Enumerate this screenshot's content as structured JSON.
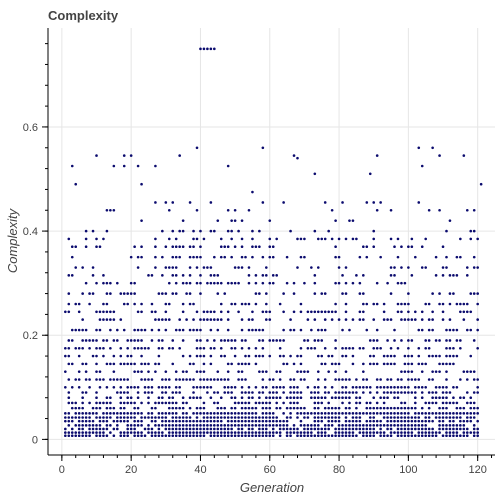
{
  "chart_data": {
    "type": "scatter",
    "title": "Complexity",
    "xlabel": "Generation",
    "ylabel": "Complexity",
    "xlim": [
      -4,
      125
    ],
    "ylim": [
      -0.03,
      0.79
    ],
    "x_ticks": [
      0,
      20,
      40,
      60,
      80,
      100,
      120
    ],
    "y_ticks": [
      0,
      0.2,
      0.4,
      0.6
    ],
    "grid": true,
    "marker_color": "#0b0b6e",
    "generations": [
      1,
      120
    ],
    "levels": [
      0.007,
      0.013,
      0.02,
      0.027,
      0.035,
      0.042,
      0.05,
      0.06,
      0.07,
      0.08,
      0.09,
      0.1,
      0.115,
      0.13,
      0.145,
      0.16,
      0.175,
      0.19,
      0.21,
      0.23,
      0.245,
      0.26,
      0.28,
      0.3,
      0.315,
      0.33,
      0.35,
      0.37,
      0.385,
      0.4,
      0.42,
      0.44,
      0.455,
      0.475,
      0.49,
      0.51,
      0.525,
      0.545,
      0.56
    ],
    "outliers": [
      {
        "x": 40,
        "y": 0.75
      },
      {
        "x": 41,
        "y": 0.75
      },
      {
        "x": 42,
        "y": 0.75
      },
      {
        "x": 43,
        "y": 0.75
      },
      {
        "x": 44,
        "y": 0.75
      },
      {
        "x": 39,
        "y": 0.56
      },
      {
        "x": 34,
        "y": 0.545
      },
      {
        "x": 67,
        "y": 0.545
      },
      {
        "x": 68,
        "y": 0.54
      },
      {
        "x": 107,
        "y": 0.56
      },
      {
        "x": 91,
        "y": 0.545
      },
      {
        "x": 104,
        "y": 0.525
      },
      {
        "x": 109,
        "y": 0.545
      },
      {
        "x": 48,
        "y": 0.525
      },
      {
        "x": 121,
        "y": 0.49
      },
      {
        "x": 4,
        "y": 0.49
      }
    ]
  }
}
